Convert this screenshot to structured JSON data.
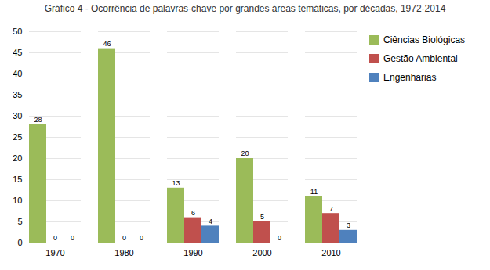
{
  "chart_data": {
    "type": "bar",
    "title": "Gráfico 4 - Ocorrência de palavras-chave por grandes áreas temáticas, por décadas, 1972-2014",
    "categories": [
      "1970",
      "1980",
      "1990",
      "2000",
      "2010"
    ],
    "series": [
      {
        "name": "Ciências Biológicas",
        "color": "#9BBB59",
        "values": [
          28,
          46,
          13,
          20,
          11
        ]
      },
      {
        "name": "Gestão Ambiental",
        "color": "#C0504D",
        "values": [
          0,
          0,
          6,
          5,
          7
        ]
      },
      {
        "name": "Engenharias",
        "color": "#4F81BD",
        "values": [
          0,
          0,
          4,
          0,
          3
        ]
      }
    ],
    "ylim": [
      0,
      50
    ],
    "yticks": [
      0,
      5,
      10,
      15,
      20,
      25,
      30,
      35,
      40,
      45,
      50
    ],
    "grid": true,
    "legend": "right",
    "data_labels": true
  }
}
